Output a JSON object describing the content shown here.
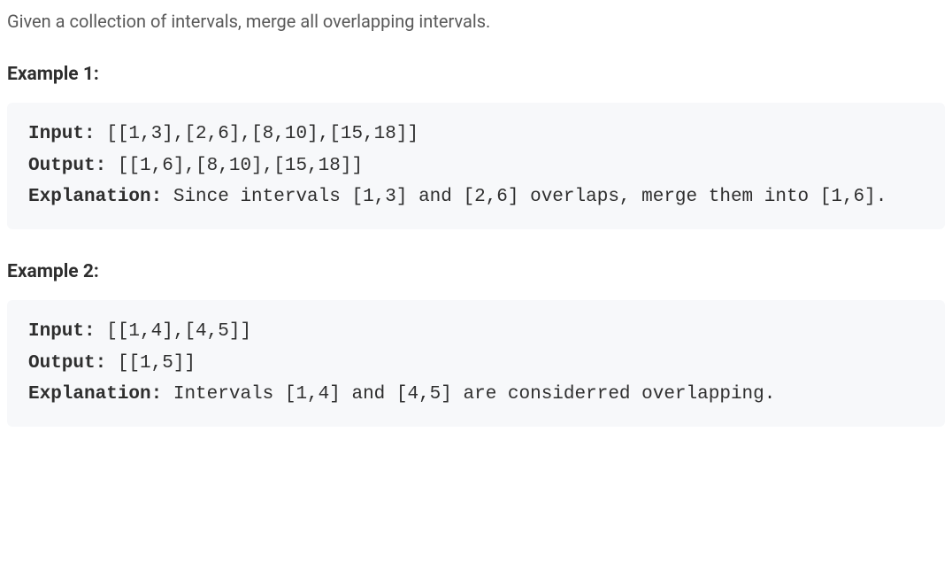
{
  "problem_statement": "Given a collection of intervals, merge all overlapping intervals.",
  "examples": [
    {
      "heading": "Example 1:",
      "input_label": "Input:",
      "input_value": " [[1,3],[2,6],[8,10],[15,18]]",
      "output_label": "Output:",
      "output_value": " [[1,6],[8,10],[15,18]]",
      "explanation_label": "Explanation:",
      "explanation_value": " Since intervals [1,3] and [2,6] overlaps, merge them into [1,6]."
    },
    {
      "heading": "Example 2:",
      "input_label": "Input:",
      "input_value": " [[1,4],[4,5]]",
      "output_label": "Output:",
      "output_value": " [[1,5]]",
      "explanation_label": "Explanation:",
      "explanation_value": " Intervals [1,4] and [4,5] are considerred overlapping."
    }
  ],
  "styling": {
    "body_bg_color": "#ffffff",
    "code_bg_color": "#f7f8fa",
    "text_color": "#595959",
    "heading_color": "#2e2e2e",
    "code_text_color": "#2e2e2e",
    "body_font_size": 20,
    "heading_font_size": 21,
    "code_font_size": 21,
    "heading_font_weight": 700,
    "label_font_weight": 700,
    "code_font_family": "SFMono-Regular, Consolas, Liberation Mono, Menlo, monospace",
    "body_font_family": "-apple-system, BlinkMacSystemFont, Segoe UI, Roboto, Helvetica Neue, Arial, sans-serif",
    "code_line_height": 1.7,
    "body_line_height": 1.6,
    "code_border_radius": 6
  }
}
